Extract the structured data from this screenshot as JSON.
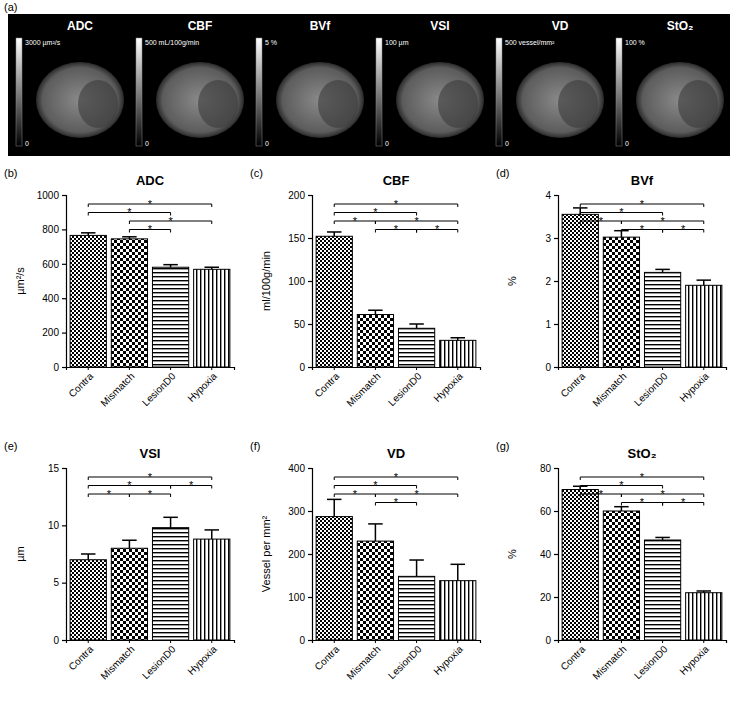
{
  "image_panel": {
    "panel_label": "(a)",
    "maps": [
      {
        "label": "ADC",
        "max_label": "3000 µm²/s",
        "min_label": "0"
      },
      {
        "label": "CBF",
        "max_label": "500 mL/100g/min",
        "min_label": "0"
      },
      {
        "label": "BVf",
        "max_label": "5 %",
        "min_label": "0"
      },
      {
        "label": "VSI",
        "max_label": "100 µm",
        "min_label": "0"
      },
      {
        "label": "VD",
        "max_label": "500 vessel/mm²",
        "min_label": "0"
      },
      {
        "label": "StO₂",
        "max_label": "100 %",
        "min_label": "0"
      }
    ]
  },
  "chart_data": [
    {
      "type": "bar",
      "panel_label": "(b)",
      "title": "ADC",
      "y_label": "µm²/s",
      "color": "#000000",
      "categories": [
        "Contra",
        "Mismatch",
        "LesionD0",
        "Hypoxia"
      ],
      "values": [
        765,
        745,
        580,
        568
      ],
      "errors": [
        15,
        12,
        15,
        12
      ],
      "ylim": [
        0,
        1000
      ],
      "yticks": [
        0,
        200,
        400,
        600,
        800,
        1000
      ],
      "grid": false,
      "annotations": [
        {
          "between": [
            "Contra",
            "Hypoxia"
          ],
          "label": "*"
        },
        {
          "between": [
            "Contra",
            "LesionD0"
          ],
          "label": "*"
        },
        {
          "between": [
            "Mismatch",
            "Hypoxia"
          ],
          "label": "*"
        },
        {
          "between": [
            "Mismatch",
            "LesionD0"
          ],
          "label": "*"
        }
      ]
    },
    {
      "type": "bar",
      "panel_label": "(c)",
      "title": "CBF",
      "y_label": "ml/100g/min",
      "color": "#000000",
      "categories": [
        "Contra",
        "Mismatch",
        "LesionD0",
        "Hypoxia"
      ],
      "values": [
        152,
        61,
        45,
        31
      ],
      "errors": [
        5,
        5,
        5,
        3
      ],
      "ylim": [
        0,
        200
      ],
      "yticks": [
        0,
        50,
        100,
        150,
        200
      ],
      "grid": false,
      "annotations": [
        {
          "between": [
            "Contra",
            "Hypoxia"
          ],
          "label": "*"
        },
        {
          "between": [
            "Contra",
            "LesionD0"
          ],
          "label": "*"
        },
        {
          "between": [
            "Mismatch",
            "Hypoxia"
          ],
          "label": "*"
        },
        {
          "between": [
            "Contra",
            "Mismatch"
          ],
          "label": "*"
        },
        {
          "between": [
            "Mismatch",
            "LesionD0"
          ],
          "label": "*"
        },
        {
          "between": [
            "LesionD0",
            "Hypoxia"
          ],
          "label": "*"
        }
      ]
    },
    {
      "type": "bar",
      "panel_label": "(d)",
      "title": "BVf",
      "y_label": "%",
      "color": "#000000",
      "categories": [
        "Contra",
        "Mismatch",
        "LesionD0",
        "Hypoxia"
      ],
      "values": [
        3.55,
        3.02,
        2.2,
        1.9
      ],
      "errors": [
        0.15,
        0.15,
        0.07,
        0.12
      ],
      "ylim": [
        0,
        4
      ],
      "yticks": [
        0,
        1,
        2,
        3,
        4
      ],
      "grid": false,
      "annotations": [
        {
          "between": [
            "Contra",
            "Hypoxia"
          ],
          "label": "*"
        },
        {
          "between": [
            "Contra",
            "LesionD0"
          ],
          "label": "*"
        },
        {
          "between": [
            "Mismatch",
            "Hypoxia"
          ],
          "label": "*"
        },
        {
          "between": [
            "Contra",
            "Mismatch"
          ],
          "label": "*"
        },
        {
          "between": [
            "Mismatch",
            "LesionD0"
          ],
          "label": "*"
        },
        {
          "between": [
            "LesionD0",
            "Hypoxia"
          ],
          "label": "*"
        }
      ]
    },
    {
      "type": "bar",
      "panel_label": "(e)",
      "title": "VSI",
      "y_label": "µm",
      "color": "#000000",
      "categories": [
        "Contra",
        "Mismatch",
        "LesionD0",
        "Hypoxia"
      ],
      "values": [
        7.0,
        8.0,
        9.8,
        8.8
      ],
      "errors": [
        0.5,
        0.7,
        0.9,
        0.8
      ],
      "ylim": [
        0,
        15
      ],
      "yticks": [
        0,
        5,
        10,
        15
      ],
      "grid": false,
      "annotations": [
        {
          "between": [
            "Contra",
            "Hypoxia"
          ],
          "label": "*"
        },
        {
          "between": [
            "Contra",
            "LesionD0"
          ],
          "label": "*"
        },
        {
          "between": [
            "Contra",
            "Mismatch"
          ],
          "label": "*"
        },
        {
          "between": [
            "Mismatch",
            "LesionD0"
          ],
          "label": "*"
        },
        {
          "between": [
            "LesionD0",
            "Hypoxia"
          ],
          "label": "*"
        }
      ]
    },
    {
      "type": "bar",
      "panel_label": "(f)",
      "title": "VD",
      "y_label": "Vessel per mm²",
      "color": "#000000",
      "categories": [
        "Contra",
        "Mismatch",
        "LesionD0",
        "Hypoxia"
      ],
      "values": [
        287,
        230,
        148,
        138
      ],
      "errors": [
        40,
        40,
        38,
        38
      ],
      "ylim": [
        0,
        400
      ],
      "yticks": [
        0,
        100,
        200,
        300,
        400
      ],
      "grid": false,
      "annotations": [
        {
          "between": [
            "Contra",
            "Hypoxia"
          ],
          "label": "*"
        },
        {
          "between": [
            "Contra",
            "LesionD0"
          ],
          "label": "*"
        },
        {
          "between": [
            "Mismatch",
            "Hypoxia"
          ],
          "label": "*"
        },
        {
          "between": [
            "Contra",
            "Mismatch"
          ],
          "label": "*"
        },
        {
          "between": [
            "Mismatch",
            "LesionD0"
          ],
          "label": "*"
        }
      ]
    },
    {
      "type": "bar",
      "panel_label": "(g)",
      "title": "StO₂",
      "y_label": "%",
      "color": "#000000",
      "categories": [
        "Contra",
        "Mismatch",
        "LesionD0",
        "Hypoxia"
      ],
      "values": [
        70,
        60,
        46.5,
        22
      ],
      "errors": [
        1.5,
        2,
        1.2,
        0.8
      ],
      "ylim": [
        0,
        80
      ],
      "yticks": [
        0,
        20,
        40,
        60,
        80
      ],
      "grid": false,
      "annotations": [
        {
          "between": [
            "Contra",
            "Hypoxia"
          ],
          "label": "*"
        },
        {
          "between": [
            "Contra",
            "LesionD0"
          ],
          "label": "*"
        },
        {
          "between": [
            "Mismatch",
            "Hypoxia"
          ],
          "label": "*"
        },
        {
          "between": [
            "Contra",
            "Mismatch"
          ],
          "label": "*"
        },
        {
          "between": [
            "Mismatch",
            "LesionD0"
          ],
          "label": "*"
        },
        {
          "between": [
            "LesionD0",
            "Hypoxia"
          ],
          "label": "*"
        }
      ]
    }
  ]
}
